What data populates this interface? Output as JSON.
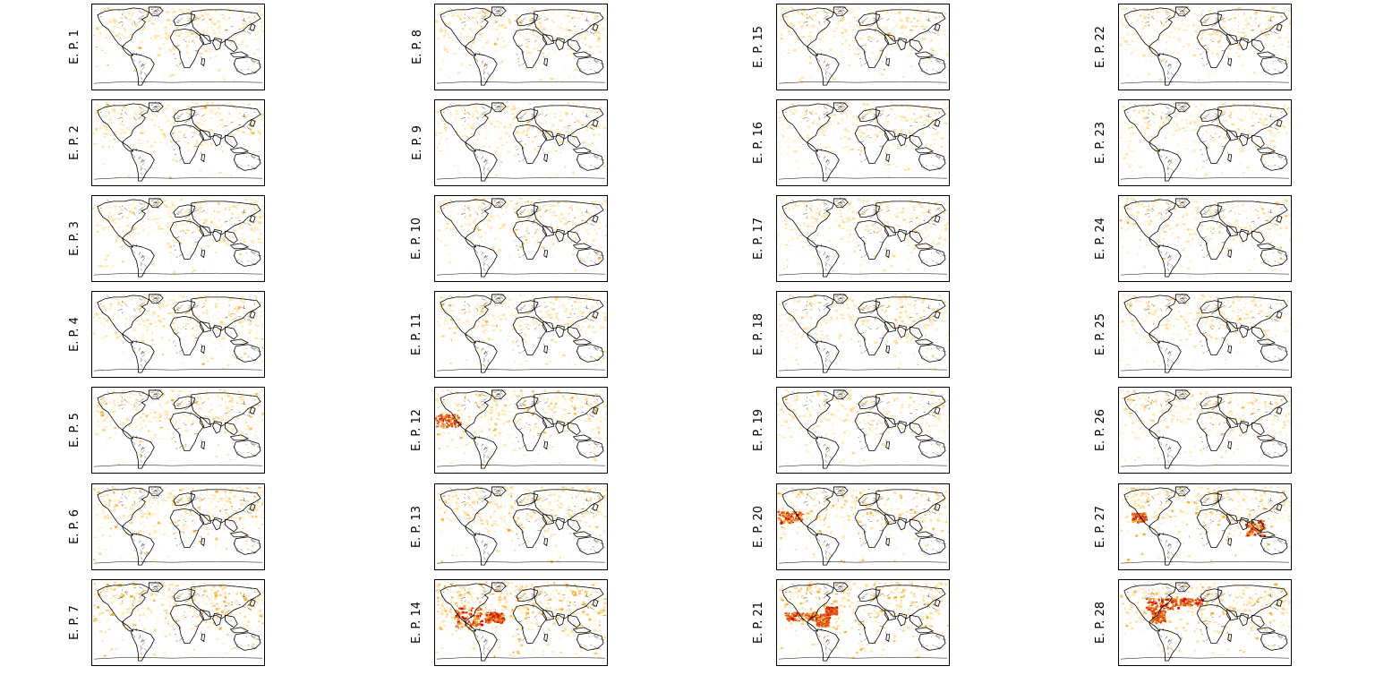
{
  "figure": {
    "colormap": [
      "#ffffff",
      "#fff3d6",
      "#ffd98a",
      "#f5a623",
      "#e2571c",
      "#c81400"
    ],
    "coastline_color": "#000000",
    "panels": [
      {
        "label": "E. P. 1",
        "intensity": 0.35,
        "hotspot": "none"
      },
      {
        "label": "E. P. 2",
        "intensity": 0.35,
        "hotspot": "none"
      },
      {
        "label": "E. P. 3",
        "intensity": 0.35,
        "hotspot": "none"
      },
      {
        "label": "E. P. 4",
        "intensity": 0.35,
        "hotspot": "none"
      },
      {
        "label": "E. P. 5",
        "intensity": 0.4,
        "hotspot": "none"
      },
      {
        "label": "E. P. 6",
        "intensity": 0.45,
        "hotspot": "none"
      },
      {
        "label": "E. P. 7",
        "intensity": 0.55,
        "hotspot": "none"
      },
      {
        "label": "E. P. 8",
        "intensity": 0.35,
        "hotspot": "none"
      },
      {
        "label": "E. P. 9",
        "intensity": 0.3,
        "hotspot": "none"
      },
      {
        "label": "E. P. 10",
        "intensity": 0.35,
        "hotspot": "none"
      },
      {
        "label": "E. P. 11",
        "intensity": 0.35,
        "hotspot": "none"
      },
      {
        "label": "E. P. 12",
        "intensity": 0.45,
        "hotspot": "pacific"
      },
      {
        "label": "E. P. 13",
        "intensity": 0.45,
        "hotspot": "none"
      },
      {
        "label": "E. P. 14",
        "intensity": 0.7,
        "hotspot": "caribbean"
      },
      {
        "label": "E. P. 15",
        "intensity": 0.35,
        "hotspot": "none"
      },
      {
        "label": "E. P. 16",
        "intensity": 0.3,
        "hotspot": "none"
      },
      {
        "label": "E. P. 17",
        "intensity": 0.35,
        "hotspot": "none"
      },
      {
        "label": "E. P. 18",
        "intensity": 0.35,
        "hotspot": "none"
      },
      {
        "label": "E. P. 19",
        "intensity": 0.3,
        "hotspot": "none"
      },
      {
        "label": "E. P. 20",
        "intensity": 0.45,
        "hotspot": "pacific"
      },
      {
        "label": "E. P. 21",
        "intensity": 0.5,
        "hotspot": "americas"
      },
      {
        "label": "E. P. 22",
        "intensity": 0.35,
        "hotspot": "none"
      },
      {
        "label": "E. P. 23",
        "intensity": 0.3,
        "hotspot": "none"
      },
      {
        "label": "E. P. 24",
        "intensity": 0.35,
        "hotspot": "none"
      },
      {
        "label": "E. P. 25",
        "intensity": 0.35,
        "hotspot": "none"
      },
      {
        "label": "E. P. 26",
        "intensity": 0.35,
        "hotspot": "none"
      },
      {
        "label": "E. P. 27",
        "intensity": 0.45,
        "hotspot": "southeast-asia"
      },
      {
        "label": "E. P. 28",
        "intensity": 0.5,
        "hotspot": "na-atlantic"
      }
    ]
  }
}
